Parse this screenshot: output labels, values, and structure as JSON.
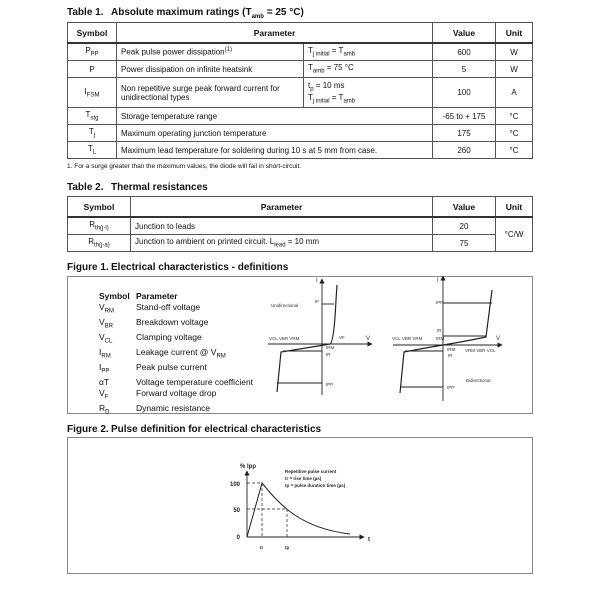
{
  "table1": {
    "label": "Table 1.",
    "title": "Absolute maximum ratings (T",
    "title_sub": "amb",
    "title_end": " = 25 °C)",
    "headers": {
      "symbol": "Symbol",
      "parameter": "Parameter",
      "value": "Value",
      "unit": "Unit"
    },
    "rows": [
      {
        "sym": "P",
        "sym_sub": "PP",
        "param": "Peak pulse power dissipation",
        "param_sup": "(1)",
        "cond": "T",
        "cond_sub": "j initial",
        "cond_end": " = T",
        "cond_sub2": "amb",
        "value": "600",
        "unit": "W"
      },
      {
        "sym": "P",
        "sym_sub": "",
        "param": "Power dissipation on infinite heatsink",
        "cond": "T",
        "cond_sub": "amb",
        "cond_end": " = 75 °C",
        "value": "5",
        "unit": "W"
      },
      {
        "sym": "I",
        "sym_sub": "FSM",
        "param": "Non repetitive surge peak forward current for unidirectional types",
        "cond": "t",
        "cond_sub": "p",
        "cond_end": " = 10 ms",
        "cond2": "T",
        "cond2_sub": "j initial",
        "cond2_end": " = T",
        "cond2_sub2": "amb",
        "value": "100",
        "unit": "A"
      },
      {
        "sym": "T",
        "sym_sub": "stg",
        "param": "Storage temperature range",
        "value": "-65 to + 175",
        "unit": "°C"
      },
      {
        "sym": "T",
        "sym_sub": "j",
        "param": "Maximum operating junction temperature",
        "value": "175",
        "unit": "°C"
      },
      {
        "sym": "T",
        "sym_sub": "L",
        "param": "Maximum lead temperature for soldering during 10 s at 5 mm from case.",
        "value": "260",
        "unit": "°C"
      }
    ],
    "footnote": "1.   For a surge greater than the maximum values, the diode will fail in short-circuit."
  },
  "table2": {
    "label": "Table 2.",
    "title": "Thermal resistances",
    "headers": {
      "symbol": "Symbol",
      "parameter": "Parameter",
      "value": "Value",
      "unit": "Unit"
    },
    "rows": [
      {
        "sym": "R",
        "sym_sub": "th(j-l)",
        "param": "Junction to leads",
        "value": "20"
      },
      {
        "sym": "R",
        "sym_sub": "th(j-a)",
        "param": "Junction to ambient on printed circuit. L",
        "param_sub": "lead",
        "param_end": " = 10 mm",
        "value": "75"
      }
    ],
    "unit": "°C/W"
  },
  "figure1": {
    "label": "Figure 1.",
    "title": "Electrical characteristics - definitions",
    "legend_header": {
      "symbol": "Symbol",
      "parameter": "Parameter"
    },
    "legend": [
      {
        "sym": "V",
        "sub": "RM",
        "param": "Stand-off voltage"
      },
      {
        "sym": "V",
        "sub": "BR",
        "param": "Breakdown voltage"
      },
      {
        "sym": "V",
        "sub": "CL",
        "param": "Clamping voltage"
      },
      {
        "sym": "I",
        "sub": "RM",
        "param": "Leakage current @ V",
        "param_sub": "RM"
      },
      {
        "sym": "I",
        "sub": "PP",
        "param": "Peak pulse current"
      },
      {
        "sym": "αT",
        "sub": "",
        "param": "Voltage temperature coefficient"
      },
      {
        "sym": "V",
        "sub": "F",
        "param": "Forward voltage drop"
      },
      {
        "sym": "R",
        "sub": "D",
        "param": "Dynamic resistance"
      }
    ],
    "uni": {
      "type": "Unidirectional",
      "i": "I",
      "v": "V",
      "if": "IF",
      "vleft": "VCL VBR VRM",
      "vf": "VF",
      "irm": "IRM",
      "ir": "IR",
      "ipp": "IPP"
    },
    "bi": {
      "type": "Bidirectional",
      "i": "I",
      "v": "V",
      "ipp": "IPP",
      "ir": "IR",
      "irm": "IRM",
      "vleft": "VCL VBR VRM",
      "vright": "VRM VBR VCL",
      "irm2": "IRM",
      "ir2": "IR",
      "ipp2": "IPP"
    }
  },
  "figure2": {
    "label": "Figure 2.",
    "title": "Pulse definition for electrical characteristics",
    "ylabel": "% Ipp",
    "yticks": [
      "100",
      "50",
      "0"
    ],
    "xlabel": "t",
    "xticks": [
      "tr",
      "tp"
    ],
    "notes": [
      "Repetitive pulse current",
      "tr = rise time (µs)",
      "tp = pulse duration time (µs)"
    ]
  }
}
